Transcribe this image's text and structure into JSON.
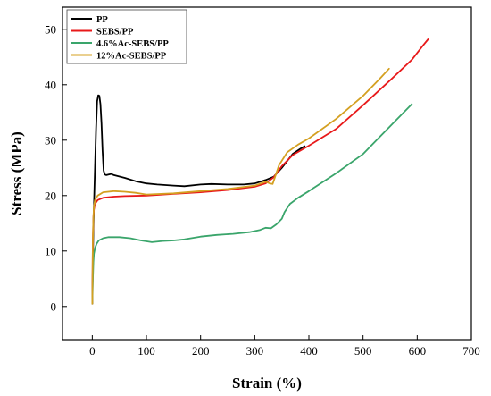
{
  "chart_data": {
    "type": "line",
    "title": "",
    "xlabel": "Strain (%)",
    "ylabel": "Stress (MPa)",
    "xlim": [
      -55,
      700
    ],
    "ylim": [
      -6,
      54
    ],
    "xticks": [
      0,
      100,
      200,
      300,
      400,
      500,
      600,
      700
    ],
    "yticks": [
      0,
      10,
      20,
      30,
      40,
      50
    ],
    "grid": false,
    "legend_position": "top-left",
    "series": [
      {
        "name": "PP",
        "color": "#000000",
        "points": [
          [
            0,
            0.5
          ],
          [
            1,
            8
          ],
          [
            2,
            14
          ],
          [
            3,
            18
          ],
          [
            5,
            25
          ],
          [
            7,
            32
          ],
          [
            9,
            37
          ],
          [
            11,
            38.1
          ],
          [
            13,
            38
          ],
          [
            15,
            36.5
          ],
          [
            17,
            33
          ],
          [
            19,
            28
          ],
          [
            21,
            24.5
          ],
          [
            23,
            23.8
          ],
          [
            26,
            23.7
          ],
          [
            30,
            23.8
          ],
          [
            35,
            23.9
          ],
          [
            40,
            23.7
          ],
          [
            60,
            23.2
          ],
          [
            80,
            22.6
          ],
          [
            100,
            22.2
          ],
          [
            120,
            22.0
          ],
          [
            150,
            21.8
          ],
          [
            170,
            21.7
          ],
          [
            200,
            22.0
          ],
          [
            220,
            22.1
          ],
          [
            250,
            22.0
          ],
          [
            280,
            22.0
          ],
          [
            300,
            22.2
          ],
          [
            320,
            22.8
          ],
          [
            335,
            23.4
          ],
          [
            350,
            25.0
          ],
          [
            370,
            27.5
          ],
          [
            385,
            28.5
          ],
          [
            392,
            28.9
          ]
        ]
      },
      {
        "name": "SEBS/PP",
        "color": "#e8191a",
        "points": [
          [
            0,
            0.5
          ],
          [
            1,
            12
          ],
          [
            2,
            16
          ],
          [
            3,
            17.5
          ],
          [
            5,
            18.5
          ],
          [
            10,
            19.2
          ],
          [
            20,
            19.6
          ],
          [
            40,
            19.8
          ],
          [
            60,
            19.9
          ],
          [
            100,
            20.0
          ],
          [
            150,
            20.3
          ],
          [
            200,
            20.6
          ],
          [
            250,
            21.0
          ],
          [
            300,
            21.6
          ],
          [
            320,
            22.2
          ],
          [
            335,
            23.3
          ],
          [
            350,
            25.3
          ],
          [
            370,
            27.3
          ],
          [
            400,
            29.0
          ],
          [
            450,
            32.0
          ],
          [
            500,
            36.3
          ],
          [
            550,
            40.8
          ],
          [
            590,
            44.5
          ],
          [
            610,
            47.0
          ],
          [
            620,
            48.2
          ]
        ]
      },
      {
        "name": "4.6%Ac-SEBS/PP",
        "color": "#3aa56b",
        "points": [
          [
            0,
            0.5
          ],
          [
            1,
            5
          ],
          [
            2,
            8
          ],
          [
            3,
            9.5
          ],
          [
            5,
            10.5
          ],
          [
            8,
            11.3
          ],
          [
            12,
            11.9
          ],
          [
            20,
            12.3
          ],
          [
            30,
            12.5
          ],
          [
            50,
            12.5
          ],
          [
            70,
            12.3
          ],
          [
            90,
            11.9
          ],
          [
            110,
            11.6
          ],
          [
            130,
            11.8
          ],
          [
            150,
            11.9
          ],
          [
            170,
            12.1
          ],
          [
            200,
            12.6
          ],
          [
            230,
            12.9
          ],
          [
            260,
            13.1
          ],
          [
            290,
            13.4
          ],
          [
            310,
            13.8
          ],
          [
            320,
            14.2
          ],
          [
            330,
            14.1
          ],
          [
            340,
            14.8
          ],
          [
            350,
            15.8
          ],
          [
            355,
            17.0
          ],
          [
            365,
            18.5
          ],
          [
            380,
            19.6
          ],
          [
            400,
            20.8
          ],
          [
            450,
            24.0
          ],
          [
            500,
            27.5
          ],
          [
            550,
            32.5
          ],
          [
            590,
            36.5
          ]
        ]
      },
      {
        "name": "12%Ac-SEBS/PP",
        "color": "#d4a021",
        "points": [
          [
            0,
            0.5
          ],
          [
            1,
            12
          ],
          [
            2,
            16
          ],
          [
            3,
            18
          ],
          [
            5,
            19.2
          ],
          [
            10,
            20.0
          ],
          [
            20,
            20.6
          ],
          [
            40,
            20.8
          ],
          [
            60,
            20.7
          ],
          [
            80,
            20.5
          ],
          [
            100,
            20.2
          ],
          [
            150,
            20.4
          ],
          [
            200,
            20.8
          ],
          [
            250,
            21.2
          ],
          [
            300,
            21.8
          ],
          [
            320,
            22.5
          ],
          [
            328,
            22.2
          ],
          [
            333,
            22.1
          ],
          [
            338,
            23.5
          ],
          [
            345,
            25.5
          ],
          [
            360,
            27.8
          ],
          [
            380,
            29.2
          ],
          [
            400,
            30.3
          ],
          [
            450,
            33.8
          ],
          [
            500,
            38.0
          ],
          [
            530,
            41.0
          ],
          [
            548,
            42.9
          ]
        ]
      }
    ]
  }
}
